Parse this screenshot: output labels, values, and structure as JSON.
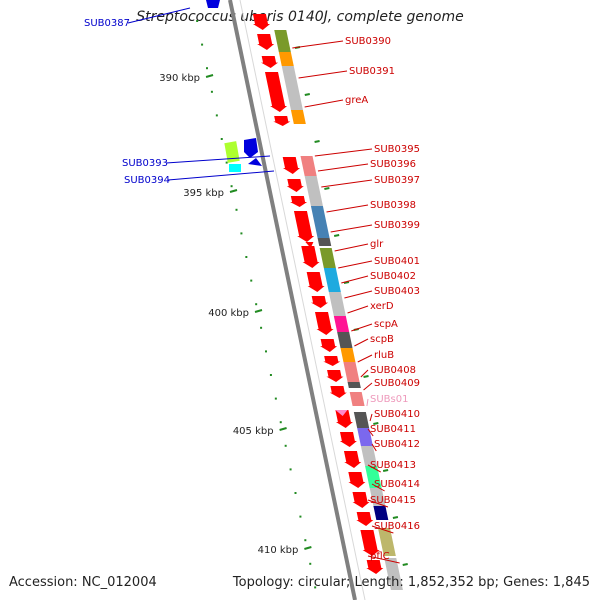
{
  "title": "Streptococcus uberis 0140J, complete genome",
  "accession": "Accession: NC_012004",
  "topology": "Topology: circular; Length: 1,852,352 bp; Genes: 1,845",
  "colors": {
    "backbone": "#808080",
    "gene_red": "#ff0000",
    "label_red": "#cc0000",
    "label_blue": "#0000cc",
    "label_pink": "#ee99bb",
    "tick_green": "#228b22"
  },
  "scale_labels": [
    "390 kbp",
    "395 kbp",
    "400 kbp",
    "405 kbp",
    "410 kbp"
  ],
  "right_genes": [
    "SUB0390",
    "SUB0391",
    "greA",
    "SUB0395",
    "SUB0396",
    "SUB0397",
    "SUB0398",
    "SUB0399",
    "glr",
    "SUB0401",
    "SUB0402",
    "SUB0403",
    "xerD",
    "scpA",
    "scpB",
    "rluB",
    "SUB0408",
    "SUB0409",
    "SUBs01",
    "SUB0410",
    "SUB0411",
    "SUB0412",
    "SUB0413",
    "SUB0414",
    "SUB0415",
    "SUB0416",
    "pflC"
  ],
  "left_genes": [
    "SUB0387",
    "SUB0393",
    "SUB0394"
  ],
  "category_colors": [
    "#7a9a2a",
    "#ff9900",
    "#c0c0c0",
    "#f08080",
    "#4682b4",
    "#555555",
    "#1eaadf",
    "#ff1493",
    "#7b68ee",
    "#33ff99",
    "#000080",
    "#bdb76b",
    "#00ffff",
    "#adff2f"
  ]
}
